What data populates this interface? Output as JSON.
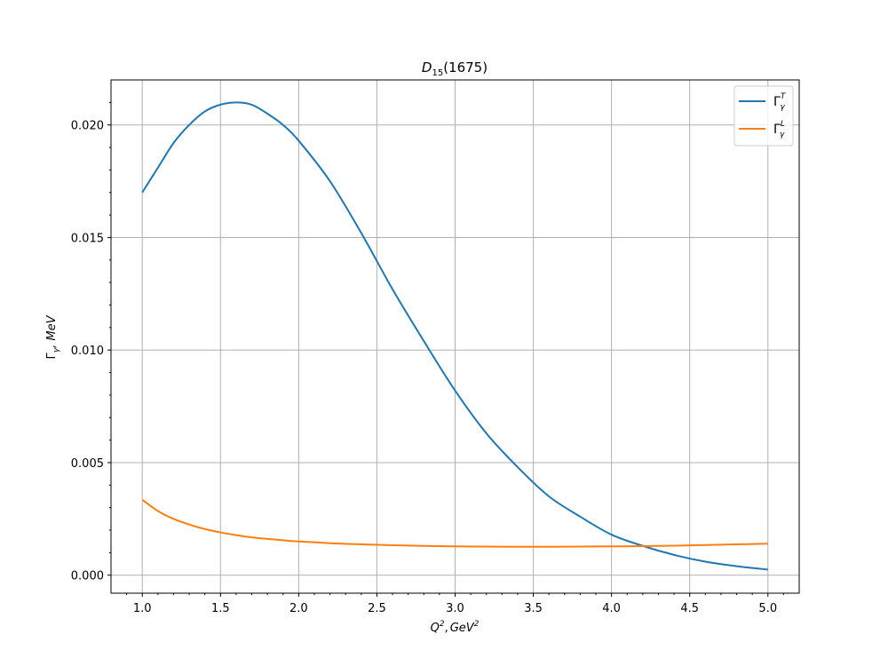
{
  "chart_data": {
    "type": "line",
    "title": "D15(1675)",
    "title_parts": {
      "main": "D",
      "sub": "15",
      "rest": "(1675)"
    },
    "xlabel": "Q2, GeV2",
    "xlabel_parts": {
      "q": "Q",
      "q_sup": "2",
      "mid": ",",
      "gev": "GeV",
      "gev_sup": "2"
    },
    "ylabel": "Γγ, MeV",
    "ylabel_parts": {
      "gamma": "Γ",
      "gamma_sub": "γ",
      "rest": ", MeV"
    },
    "xlim": [
      0.8,
      5.2
    ],
    "ylim": [
      -0.0008,
      0.022
    ],
    "xticks": [
      1.0,
      1.5,
      2.0,
      2.5,
      3.0,
      3.5,
      4.0,
      4.5,
      5.0
    ],
    "xtick_labels": [
      "1.0",
      "1.5",
      "2.0",
      "2.5",
      "3.0",
      "3.5",
      "4.0",
      "4.5",
      "5.0"
    ],
    "yticks": [
      0.0,
      0.005,
      0.01,
      0.015,
      0.02
    ],
    "ytick_labels": [
      "0.000",
      "0.005",
      "0.010",
      "0.015",
      "0.020"
    ],
    "grid": true,
    "legend_position": "top-right",
    "x": [
      1.0,
      1.1,
      1.2,
      1.3,
      1.4,
      1.5,
      1.6,
      1.7,
      1.8,
      1.9,
      2.0,
      2.2,
      2.4,
      2.6,
      2.8,
      3.0,
      3.2,
      3.4,
      3.6,
      3.8,
      4.0,
      4.2,
      4.4,
      4.6,
      4.8,
      5.0
    ],
    "series": [
      {
        "name": "ΓγT",
        "name_parts": {
          "base": "Γ",
          "sup": "T",
          "sub": "γ"
        },
        "color": "#1f77b4",
        "values": [
          0.017,
          0.0181,
          0.0192,
          0.02,
          0.0206,
          0.0209,
          0.021,
          0.0209,
          0.0205,
          0.02,
          0.0193,
          0.0175,
          0.0152,
          0.0127,
          0.0104,
          0.0082,
          0.0063,
          0.0048,
          0.0035,
          0.0026,
          0.0018,
          0.0013,
          0.0009,
          0.0006,
          0.0004,
          0.00025
        ]
      },
      {
        "name": "ΓγL",
        "name_parts": {
          "base": "Γ",
          "sup": "L",
          "sub": "γ"
        },
        "color": "#ff7f0e",
        "values": [
          0.00335,
          0.00285,
          0.0025,
          0.00225,
          0.00205,
          0.0019,
          0.00178,
          0.00168,
          0.00161,
          0.00155,
          0.0015,
          0.00142,
          0.00137,
          0.00133,
          0.0013,
          0.00128,
          0.00127,
          0.00126,
          0.00126,
          0.00127,
          0.00128,
          0.00129,
          0.00131,
          0.00134,
          0.00137,
          0.0014
        ]
      }
    ]
  }
}
